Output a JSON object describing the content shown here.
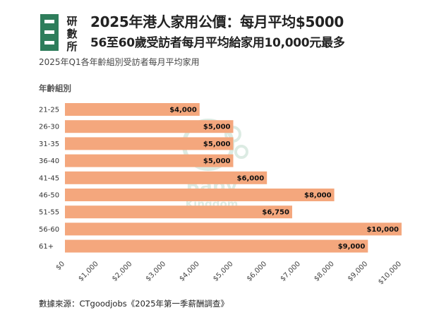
{
  "header": {
    "logo_text": [
      "研",
      "數",
      "所"
    ],
    "title": "2025年港人家用公價：每月平均$5000",
    "subtitle": "56至60歲受訪者每月平均給家用10,000元最多",
    "caption": "2025年Q1各年齡組別受訪者每月平均家用"
  },
  "chart_data": {
    "type": "bar",
    "orientation": "horizontal",
    "ylabel": "年齡組別",
    "categories": [
      "21-25",
      "26-30",
      "31-35",
      "36-40",
      "41-45",
      "46-50",
      "51-55",
      "56-60",
      "61+"
    ],
    "values": [
      4000,
      5000,
      5000,
      5000,
      6000,
      8000,
      6750,
      10000,
      9000
    ],
    "value_labels": [
      "$4,000",
      "$5,000",
      "$5,000",
      "$5,000",
      "$6,000",
      "$8,000",
      "$6,750",
      "$10,000",
      "$9,000"
    ],
    "xlim": [
      0,
      10000
    ],
    "xticks": [
      0,
      1000,
      2000,
      3000,
      4000,
      5000,
      6000,
      7000,
      8000,
      9000,
      10000
    ],
    "xtick_labels": [
      "$0",
      "$1,000",
      "$2,000",
      "$3,000",
      "$4,000",
      "$5,000",
      "$6,000",
      "$7,000",
      "$8,000",
      "$9,000",
      "$10,000"
    ],
    "bar_color": "#F4A77D",
    "grid": false
  },
  "watermark_text": [
    "Baby",
    "Kingdom"
  ],
  "source": "數據來源：CTgoodjobs《2025年第一季薪酬調查》"
}
